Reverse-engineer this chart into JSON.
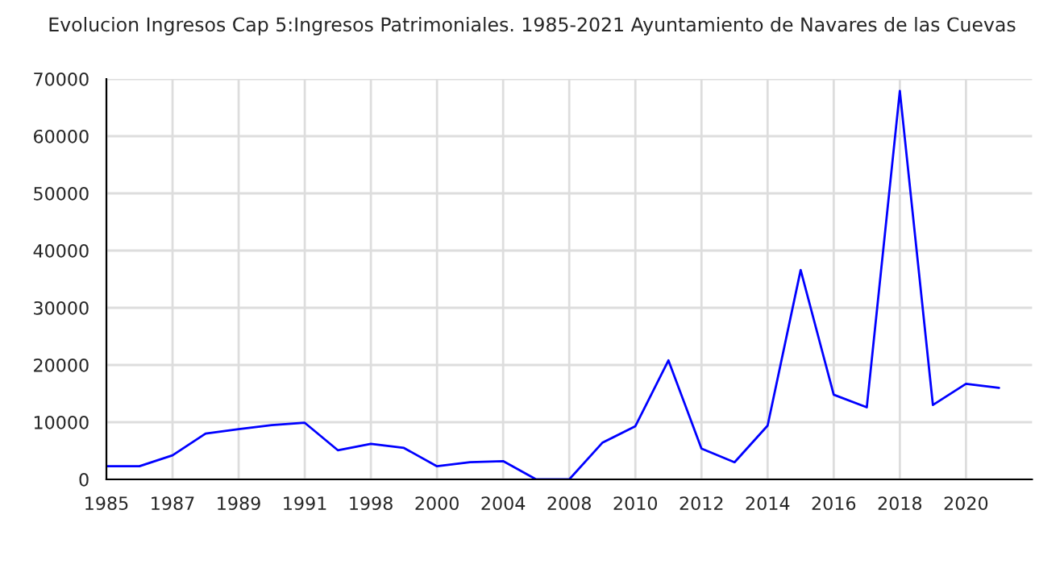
{
  "chart_data": {
    "type": "line",
    "title": "Evolucion Ingresos Cap 5:Ingresos Patrimoniales. 1985-2021 Ayuntamiento de Navares de las Cuevas",
    "categories": [
      "1985",
      null,
      "1987",
      null,
      "1989",
      null,
      "1991",
      null,
      "1998",
      null,
      "2000",
      null,
      "2004",
      null,
      "2008",
      null,
      "2010",
      null,
      "2012",
      null,
      "2014",
      null,
      "2016",
      null,
      "2018",
      null,
      "2020",
      null
    ],
    "series": [
      {
        "color": "#0000ff",
        "values": [
          2300,
          2300,
          4200,
          8000,
          8800,
          9500,
          9900,
          5100,
          6200,
          5500,
          2300,
          3000,
          3200,
          0,
          0,
          6400,
          9300,
          20800,
          5400,
          3000,
          9400,
          36600,
          14800,
          12600,
          67900,
          13000,
          16700,
          16000
        ]
      }
    ],
    "ylim": [
      0,
      70000
    ],
    "yticks": [
      0,
      10000,
      20000,
      30000,
      40000,
      50000,
      60000,
      70000
    ],
    "grid": true,
    "marker": "none",
    "line_style": "solid",
    "legend": false
  }
}
